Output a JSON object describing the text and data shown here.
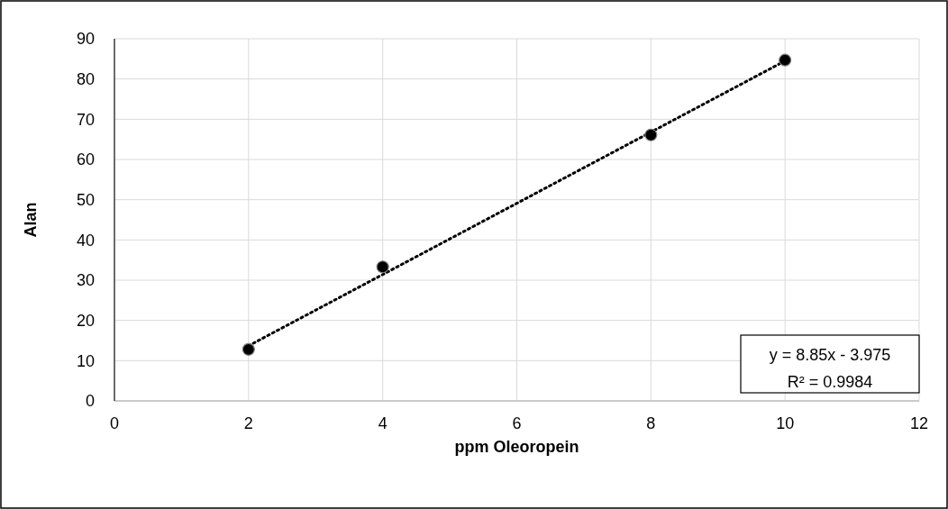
{
  "chart_data": {
    "type": "scatter",
    "xlabel": "ppm Oleoropein",
    "ylabel": "Alan",
    "series": [
      {
        "color": "#000000",
        "marker": "circle",
        "x": [
          2,
          4,
          8,
          10
        ],
        "values": [
          12.8,
          33.3,
          66.1,
          84.7
        ]
      },
      {
        "type": "line",
        "color": "#000000",
        "marker": "none",
        "line_style": "dotted",
        "x": [
          2,
          10
        ],
        "values": [
          13.7,
          84.5
        ]
      }
    ],
    "xlim": [
      0,
      12
    ],
    "xticks": [
      0,
      2,
      4,
      6,
      8,
      10,
      12
    ],
    "ylim": [
      0,
      90
    ],
    "yticks": [
      0,
      10,
      20,
      30,
      40,
      50,
      60,
      70,
      80,
      90
    ],
    "grid": true,
    "annotations": [
      "y = 8.85x - 3.975",
      "R² = 0.9984"
    ]
  }
}
